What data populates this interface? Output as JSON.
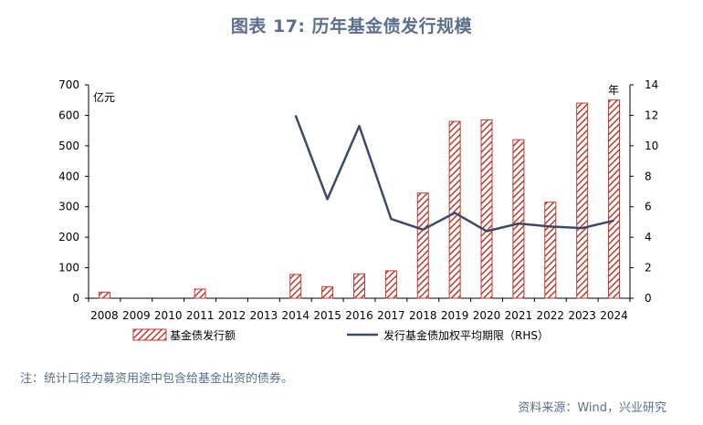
{
  "title": "图表 17: 历年基金债发行规模",
  "note": "注：统计口径为募资用途中包含给基金出资的债券。",
  "source": "资料来源：Wind，兴业研究",
  "colors": {
    "bar": "#c0392b",
    "line": "#3d4a66",
    "title": "#5b6e8c",
    "axis": "#000000"
  },
  "chart_data": {
    "type": "bar",
    "categories": [
      "2008",
      "2009",
      "2010",
      "2011",
      "2012",
      "2013",
      "2014",
      "2015",
      "2016",
      "2017",
      "2018",
      "2019",
      "2020",
      "2021",
      "2022",
      "2023",
      "2024"
    ],
    "left_axis": {
      "unit_label": "亿元",
      "ylim": [
        0,
        700
      ],
      "ticks": [
        0,
        100,
        200,
        300,
        400,
        500,
        600,
        700
      ]
    },
    "right_axis": {
      "unit_label": "年",
      "ylim": [
        0,
        14
      ],
      "ticks": [
        0,
        2,
        4,
        6,
        8,
        10,
        12,
        14
      ]
    },
    "series": [
      {
        "name": "基金债发行额",
        "type": "bar",
        "axis": "left",
        "values": [
          20,
          0,
          0,
          30,
          0,
          0,
          78,
          38,
          80,
          90,
          345,
          580,
          585,
          520,
          315,
          640,
          650
        ]
      },
      {
        "name": "发行基金债加权平均期限（RHS）",
        "type": "line",
        "axis": "right",
        "values": [
          null,
          null,
          null,
          null,
          null,
          null,
          12.0,
          6.5,
          11.3,
          5.2,
          4.5,
          5.6,
          4.4,
          4.9,
          4.7,
          4.6,
          5.1
        ]
      }
    ],
    "grid": false,
    "legend_position": "bottom"
  }
}
